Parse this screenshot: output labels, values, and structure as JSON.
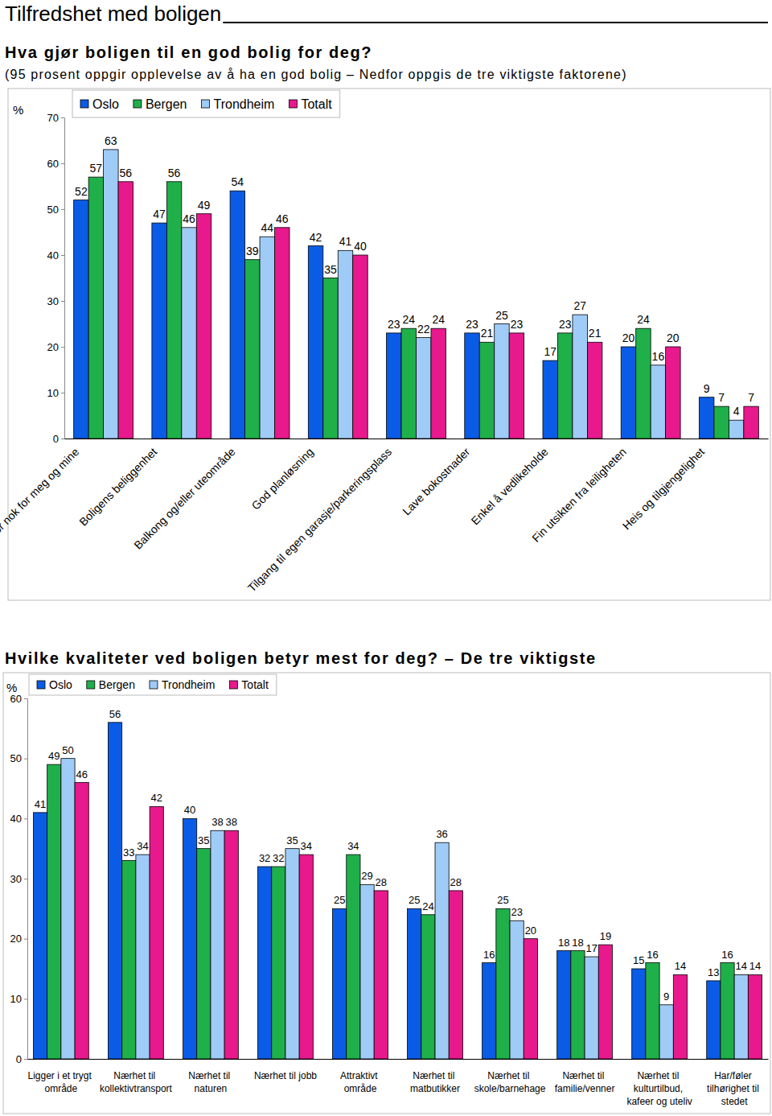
{
  "header": {
    "title": "Tilfredshet med boligen"
  },
  "chart_data": [
    {
      "type": "bar",
      "title": "Hva gjør boligen til en god bolig for deg?",
      "subtitle": "(95 prosent oppgir opplevelse av å ha en god bolig – Nedfor oppgis de tre viktigste faktorene)",
      "ylabel": "%",
      "categories": [
        "Stor nok for meg og mine",
        "Boligens beliggenhet",
        "Balkong og/eller uteområde",
        "God planløsning",
        "Tilgang til egen garasje/parkeringsplass",
        "Lave bokostnader",
        "Enkel å vedlikeholde",
        "Fin utsikten fra leiligheten",
        "Heis og tilgjengelighet"
      ],
      "series": [
        {
          "name": "Oslo",
          "color": "#0a5ce6",
          "values": [
            52,
            47,
            54,
            42,
            23,
            23,
            17,
            20,
            9
          ]
        },
        {
          "name": "Bergen",
          "color": "#1fb04a",
          "values": [
            57,
            56,
            39,
            35,
            24,
            21,
            23,
            24,
            7
          ]
        },
        {
          "name": "Trondheim",
          "color": "#9fcbf7",
          "values": [
            63,
            46,
            44,
            41,
            22,
            25,
            27,
            16,
            4
          ]
        },
        {
          "name": "Totalt",
          "color": "#e8198c",
          "values": [
            56,
            49,
            46,
            40,
            24,
            23,
            21,
            20,
            7
          ]
        }
      ],
      "ylim": [
        0,
        70
      ],
      "yticks": [
        0,
        10,
        20,
        30,
        40,
        50,
        60,
        70
      ],
      "grid": false,
      "legend": "top",
      "data_labels": true
    },
    {
      "type": "bar",
      "title": "Hvilke kvaliteter ved boligen betyr mest for deg? – De tre viktigste",
      "ylabel": "%",
      "categories": [
        "Ligger i et trygt område",
        "Nærhet til kollektivtransport",
        "Nærhet til naturen",
        "Nærhet til jobb",
        "Attraktivt område",
        "Nærhet til matbutikker",
        "Nærhet til skole/barnehage",
        "Nærhet til familie/venner",
        "Nærhet til kulturtilbud, kafeer og uteliv",
        "Har/føler tilhørighet til stedet"
      ],
      "series": [
        {
          "name": "Oslo",
          "color": "#0a5ce6",
          "values": [
            41,
            56,
            40,
            32,
            25,
            25,
            16,
            18,
            15,
            13
          ]
        },
        {
          "name": "Bergen",
          "color": "#1fb04a",
          "values": [
            49,
            33,
            35,
            32,
            34,
            24,
            25,
            18,
            16,
            16
          ]
        },
        {
          "name": "Trondheim",
          "color": "#9fcbf7",
          "values": [
            50,
            34,
            38,
            35,
            29,
            36,
            23,
            17,
            9,
            14
          ]
        },
        {
          "name": "Totalt",
          "color": "#e8198c",
          "values": [
            46,
            42,
            38,
            34,
            28,
            28,
            20,
            19,
            14,
            14
          ]
        }
      ],
      "ylim": [
        0,
        60
      ],
      "yticks": [
        0,
        10,
        20,
        30,
        40,
        50,
        60
      ],
      "grid": false,
      "legend": "top",
      "data_labels": true
    }
  ]
}
